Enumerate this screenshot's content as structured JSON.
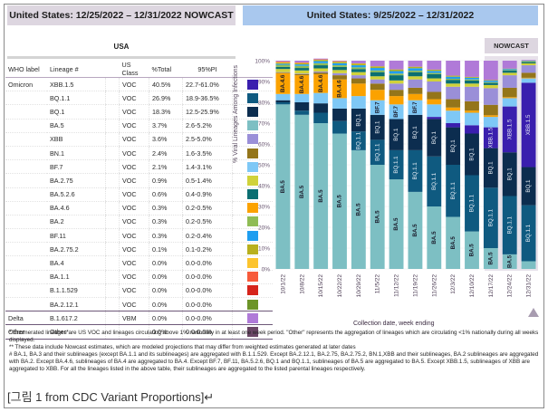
{
  "left_header": "United States: 12/25/2022 – 12/31/2022 NOWCAST",
  "right_header": "United States: 9/25/2022 – 12/31/2022",
  "region_label": "USA",
  "table": {
    "columns": [
      "WHO label",
      "Lineage #",
      "US Class",
      "%Total",
      "95%PI"
    ],
    "rows": [
      {
        "who": "Omicron",
        "lineage": "XBB.1.5",
        "cls": "VOC",
        "pct": "40.5%",
        "pi": "22.7-61.0%",
        "color": "#3a1fae"
      },
      {
        "who": "",
        "lineage": "BQ.1.1",
        "cls": "VOC",
        "pct": "26.9%",
        "pi": "18.9-36.5%",
        "color": "#0f5a80"
      },
      {
        "who": "",
        "lineage": "BQ.1",
        "cls": "VOC",
        "pct": "18.3%",
        "pi": "12.5-25.9%",
        "color": "#0c2d4f"
      },
      {
        "who": "",
        "lineage": "BA.5",
        "cls": "VOC",
        "pct": "3.7%",
        "pi": "2.6-5.2%",
        "color": "#7dbfc3"
      },
      {
        "who": "",
        "lineage": "XBB",
        "cls": "VOC",
        "pct": "3.6%",
        "pi": "2.5-5.0%",
        "color": "#9a8fd8"
      },
      {
        "who": "",
        "lineage": "BN.1",
        "cls": "VOC",
        "pct": "2.4%",
        "pi": "1.6-3.5%",
        "color": "#94751a"
      },
      {
        "who": "",
        "lineage": "BF.7",
        "cls": "VOC",
        "pct": "2.1%",
        "pi": "1.4-3.1%",
        "color": "#7ec8f6"
      },
      {
        "who": "",
        "lineage": "BA.2.75",
        "cls": "VOC",
        "pct": "0.9%",
        "pi": "0.5-1.4%",
        "color": "#d0d23a"
      },
      {
        "who": "",
        "lineage": "BA.5.2.6",
        "cls": "VOC",
        "pct": "0.6%",
        "pi": "0.4-0.9%",
        "color": "#0b6f72"
      },
      {
        "who": "",
        "lineage": "BA.4.6",
        "cls": "VOC",
        "pct": "0.3%",
        "pi": "0.2-0.5%",
        "color": "#fba200"
      },
      {
        "who": "",
        "lineage": "BA.2",
        "cls": "VOC",
        "pct": "0.3%",
        "pi": "0.2-0.5%",
        "color": "#8fbc55"
      },
      {
        "who": "",
        "lineage": "BF.11",
        "cls": "VOC",
        "pct": "0.3%",
        "pi": "0.2-0.4%",
        "color": "#1f9ef0"
      },
      {
        "who": "",
        "lineage": "BA.2.75.2",
        "cls": "VOC",
        "pct": "0.1%",
        "pi": "0.1-0.2%",
        "color": "#b8b01e"
      },
      {
        "who": "",
        "lineage": "BA.4",
        "cls": "VOC",
        "pct": "0.0%",
        "pi": "0.0-0.0%",
        "color": "#fcc42e"
      },
      {
        "who": "",
        "lineage": "BA.1.1",
        "cls": "VOC",
        "pct": "0.0%",
        "pi": "0.0-0.0%",
        "color": "#f75a3a"
      },
      {
        "who": "",
        "lineage": "B.1.1.529",
        "cls": "VOC",
        "pct": "0.0%",
        "pi": "0.0-0.0%",
        "color": "#d6241b"
      },
      {
        "who": "",
        "lineage": "BA.2.12.1",
        "cls": "VOC",
        "pct": "0.0%",
        "pi": "0.0-0.0%",
        "color": "#6c9428"
      },
      {
        "who": "Delta",
        "lineage": "B.1.617.2",
        "cls": "VBM",
        "pct": "0.0%",
        "pi": "0.0-0.0%",
        "color": "#b07ad8"
      },
      {
        "who": "Other",
        "lineage": "Other*",
        "cls": "",
        "pct": "0.0%",
        "pi": "0.0-0.0%",
        "color": "#6b4766"
      }
    ]
  },
  "nowcast_label": "NOWCAST",
  "chart_data": {
    "type": "bar",
    "stacked": true,
    "title": "United States: 9/25/2022 – 12/31/2022",
    "xlabel": "Collection date, week ending",
    "ylabel": "% Viral Lineages Among Infections",
    "ylim": [
      0,
      100
    ],
    "yticks": [
      "0%",
      "10%",
      "20%",
      "30%",
      "40%",
      "50%",
      "60%",
      "70%",
      "80%",
      "90%",
      "100%"
    ],
    "categories": [
      "10/1/22",
      "10/8/22",
      "10/15/22",
      "10/22/22",
      "10/29/22",
      "11/5/22",
      "11/12/22",
      "11/19/22",
      "11/26/22",
      "12/3/22",
      "12/10/22",
      "12/17/22",
      "12/24/22",
      "12/31/22"
    ],
    "nowcast_from_index": 11,
    "series": [
      {
        "name": "BA.5",
        "color": "#7dbfc3",
        "values": [
          79,
          74,
          70,
          65,
          57,
          50,
          43,
          37,
          30,
          25,
          18,
          10,
          7,
          3.7
        ]
      },
      {
        "name": "BQ.1.1",
        "color": "#0f5a80",
        "values": [
          1,
          2,
          5,
          6,
          9,
          12,
          14,
          20,
          24,
          25,
          27,
          29,
          28,
          26.9
        ]
      },
      {
        "name": "BQ.1",
        "color": "#0c2d4f",
        "values": [
          1,
          4,
          4.5,
          6,
          11,
          12,
          15,
          17,
          18,
          18,
          20,
          19,
          21,
          18.3
        ]
      },
      {
        "name": "XBB.1.5",
        "color": "#3a1fae",
        "values": [
          0,
          0,
          0,
          0,
          0,
          0,
          0,
          0,
          1,
          2,
          4,
          10,
          22,
          40.5
        ]
      },
      {
        "name": "BF.7",
        "color": "#7ec8f6",
        "values": [
          3,
          4,
          5,
          5,
          6,
          7,
          7,
          7,
          6,
          6,
          6,
          5,
          4,
          2.1
        ]
      },
      {
        "name": "BA.4.6",
        "color": "#fba200",
        "values": [
          10,
          9,
          9,
          9,
          6,
          5,
          4,
          3,
          2.5,
          1.5,
          1,
          0.8,
          0.5,
          0.3
        ]
      },
      {
        "name": "BN.1",
        "color": "#94751a",
        "values": [
          0.3,
          0.5,
          0.8,
          2,
          2.5,
          3,
          3,
          3,
          3.5,
          4,
          4.5,
          5,
          4.5,
          2.4
        ]
      },
      {
        "name": "XBB",
        "color": "#9a8fd8",
        "values": [
          0.2,
          0.3,
          0.5,
          1,
          1.5,
          2,
          3,
          4,
          5,
          6,
          7,
          8,
          6,
          3.6
        ]
      },
      {
        "name": "BA.2.75",
        "color": "#d0d23a",
        "values": [
          1.5,
          1.5,
          1.5,
          1.5,
          1.5,
          1.5,
          1.5,
          1.5,
          1.5,
          1.5,
          1.5,
          1.5,
          1.2,
          0.9
        ]
      },
      {
        "name": "BA.5.2.6",
        "color": "#0b6f72",
        "values": [
          1,
          1.2,
          1.5,
          1.5,
          1.5,
          2,
          2.5,
          2,
          2,
          1.8,
          1.5,
          1,
          1,
          0.6
        ]
      },
      {
        "name": "BA.2",
        "color": "#8fbc55",
        "values": [
          1,
          1,
          1,
          0.8,
          0.8,
          0.8,
          0.8,
          0.7,
          0.6,
          0.5,
          0.5,
          0.4,
          0.3,
          0.3
        ]
      },
      {
        "name": "BF.11",
        "color": "#1f9ef0",
        "values": [
          0.5,
          0.7,
          1,
          1,
          1,
          1.2,
          1.2,
          1.2,
          1,
          1,
          0.8,
          0.7,
          0.5,
          0.3
        ]
      },
      {
        "name": "BA.2.75.2",
        "color": "#b8b01e",
        "values": [
          0.5,
          0.5,
          0.6,
          0.7,
          0.8,
          0.8,
          0.8,
          0.7,
          0.6,
          0.5,
          0.4,
          0.3,
          0.2,
          0.1
        ]
      },
      {
        "name": "BA.4",
        "color": "#fcc42e",
        "values": [
          0.3,
          0.2,
          0.1,
          0.1,
          0.1,
          0,
          0,
          0,
          0,
          0,
          0,
          0,
          0,
          0
        ]
      },
      {
        "name": "BA.1.1",
        "color": "#f75a3a",
        "values": [
          0.3,
          0.2,
          0.1,
          0.1,
          0,
          0,
          0,
          0,
          0,
          0,
          0,
          0,
          0,
          0
        ]
      },
      {
        "name": "B.1.617.2/Other",
        "color": "#b07ad8",
        "values": [
          0.4,
          0.4,
          0.4,
          0.3,
          0.3,
          0.3,
          0.2,
          0.2,
          0.3,
          0.2,
          0.3,
          0.3,
          0.3,
          0.3
        ]
      }
    ],
    "bar_labels": {
      "BA.5": "BA.5",
      "BQ.1.1": "BQ.1.1",
      "BQ.1": "BQ.1",
      "XBB.1.5": "XBB.1.5",
      "BF.7": "BF.7",
      "BA.4.6": "BA.4.6"
    },
    "legend": "none",
    "grid": true
  },
  "notes": [
    "*     Enumerated lineages are US VOC and lineages circulating above 1% nationally in at least one week period. \"Other\" represents the aggregation of lineages which are circulating <1% nationally during all weeks displayed.",
    "**    These data include Nowcast estimates, which are modeled projections that may differ from weighted estimates generated at later dates",
    "#     BA.1, BA.3 and their sublineages (except BA.1.1 and its sublineages) are aggregated with B.1.1.529. Except BA.2.12.1, BA.2.75, BA.2.75.2, BN.1,XBB and their sublineages, BA.2 sublineages are aggregated with BA.2. Except BA.4.6, sublineages of BA.4 are aggregated to BA.4. Except BF.7, BF.11, BA.5.2.6, BQ.1 and BQ.1.1, sublineages of BA.5 are aggregated to BA.5. Except XBB.1.5, sublineages of XBB are aggregated to XBB. For all the lineages listed in the above table, their sublineages are aggregated to the listed parental lineages respectively."
  ],
  "caption": "[그림 1 from CDC Variant Proportions]↵"
}
